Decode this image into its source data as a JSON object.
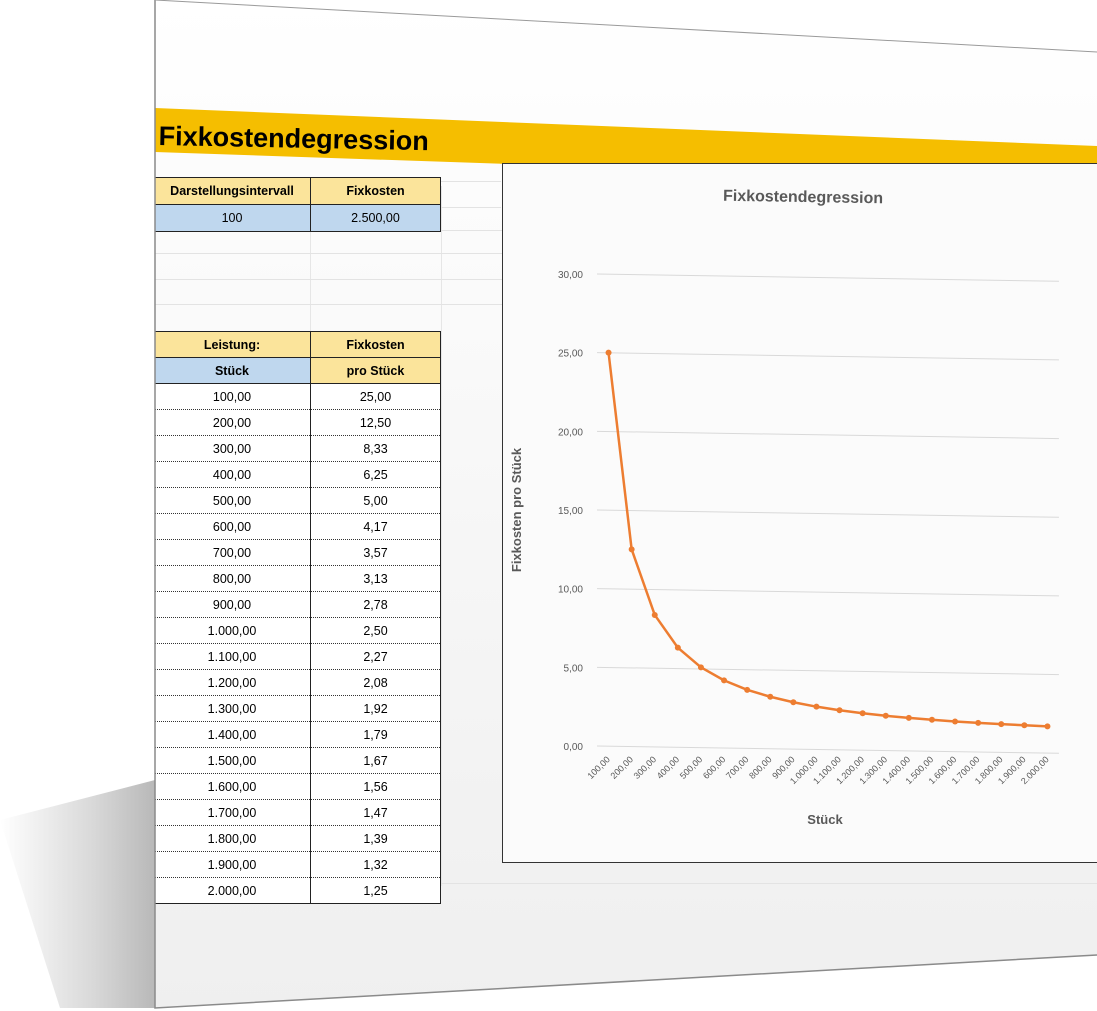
{
  "title": "Fixkostendegression",
  "params": {
    "interval_header": "Darstellungsintervall",
    "fixkosten_header": "Fixkosten",
    "interval_value": "100",
    "fixkosten_value": "2.500,00"
  },
  "table": {
    "header1": [
      "Leistung:",
      "Fixkosten"
    ],
    "header2": [
      "Stück",
      "pro Stück"
    ],
    "rows": [
      [
        "100,00",
        "25,00"
      ],
      [
        "200,00",
        "12,50"
      ],
      [
        "300,00",
        "8,33"
      ],
      [
        "400,00",
        "6,25"
      ],
      [
        "500,00",
        "5,00"
      ],
      [
        "600,00",
        "4,17"
      ],
      [
        "700,00",
        "3,57"
      ],
      [
        "800,00",
        "3,13"
      ],
      [
        "900,00",
        "2,78"
      ],
      [
        "1.000,00",
        "2,50"
      ],
      [
        "1.100,00",
        "2,27"
      ],
      [
        "1.200,00",
        "2,08"
      ],
      [
        "1.300,00",
        "1,92"
      ],
      [
        "1.400,00",
        "1,79"
      ],
      [
        "1.500,00",
        "1,67"
      ],
      [
        "1.600,00",
        "1,56"
      ],
      [
        "1.700,00",
        "1,47"
      ],
      [
        "1.800,00",
        "1,39"
      ],
      [
        "1.900,00",
        "1,32"
      ],
      [
        "2.000,00",
        "1,25"
      ]
    ]
  },
  "colors": {
    "banner": "#f5be00",
    "line": "#ed7d31",
    "header_yellow": "#fbe49b",
    "header_blue": "#bfd7ee"
  },
  "chart_data": {
    "type": "line",
    "title": "Fixkostendegression",
    "xlabel": "Stück",
    "ylabel": "Fixkosten pro Stück",
    "categories": [
      "100,00",
      "200,00",
      "300,00",
      "400,00",
      "500,00",
      "600,00",
      "700,00",
      "800,00",
      "900,00",
      "1.000,00",
      "1.100,00",
      "1.200,00",
      "1.300,00",
      "1.400,00",
      "1.500,00",
      "1.600,00",
      "1.700,00",
      "1.800,00",
      "1.900,00",
      "2.000,00"
    ],
    "series": [
      {
        "values": [
          25.0,
          12.5,
          8.33,
          6.25,
          5.0,
          4.17,
          3.57,
          3.13,
          2.78,
          2.5,
          2.27,
          2.08,
          1.92,
          1.79,
          1.67,
          1.56,
          1.47,
          1.39,
          1.32,
          1.25
        ]
      }
    ],
    "yticks": [
      "0,00",
      "5,00",
      "10,00",
      "15,00",
      "20,00",
      "25,00",
      "30,00"
    ],
    "ylim": [
      0,
      30
    ],
    "grid": true,
    "legend": "none"
  }
}
